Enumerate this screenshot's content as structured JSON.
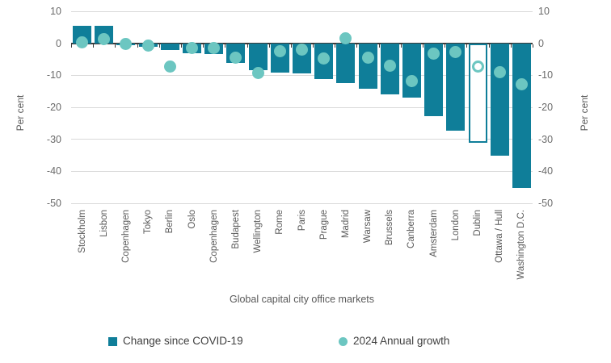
{
  "chart_data": {
    "type": "bar",
    "title": "",
    "categories": [
      "Stockholm",
      "Lisbon",
      "Copenhagen",
      "Tokyo",
      "Berlin",
      "Oslo",
      "Copenhagen",
      "Budapest",
      "Wellington",
      "Rome",
      "Paris",
      "Prague",
      "Madrid",
      "Warsaw",
      "Brussels",
      "Canberra",
      "Amsterdam",
      "London",
      "Dublin",
      "Ottawa / Hull",
      "Washington D.C."
    ],
    "series": [
      {
        "name": "Change since COVID-19",
        "type": "bar",
        "values": [
          5.5,
          5.5,
          -0.5,
          -1.0,
          -2.2,
          -3.0,
          -3.3,
          -6.2,
          -8.4,
          -9.1,
          -9.5,
          -11.2,
          -12.4,
          -14.2,
          -16.0,
          -17.0,
          -22.7,
          -27.2,
          -31.0,
          -35.1,
          -45.2
        ]
      },
      {
        "name": "2024 Annual growth",
        "type": "scatter",
        "values": [
          0.2,
          1.4,
          -0.2,
          -0.6,
          -7.3,
          -1.5,
          -1.4,
          -4.5,
          -9.4,
          -2.4,
          -2.0,
          -4.8,
          1.5,
          -4.5,
          -7.1,
          -11.8,
          -3.3,
          -2.8,
          -7.2,
          -9.1,
          -12.9
        ]
      }
    ],
    "highlight_category": "Dublin",
    "highlight_style": "hollow bar and hollow dot",
    "xlabel": "Global capital city office markets",
    "ylabel_left": "Per cent",
    "ylabel_right": "Per cent",
    "ylim": [
      -50,
      10
    ],
    "yticks": [
      10,
      0,
      -10,
      -20,
      -30,
      -40,
      -50
    ],
    "grid": true,
    "legend_position": "bottom",
    "colors": {
      "bar": "#0f7e99",
      "dot": "#6cc6c1",
      "gridline": "#d9d9d9",
      "zero_axis": "#3b3b3b",
      "tick_text": "#6a6a6a",
      "label_text": "#595959",
      "legend_text": "#404040"
    }
  }
}
